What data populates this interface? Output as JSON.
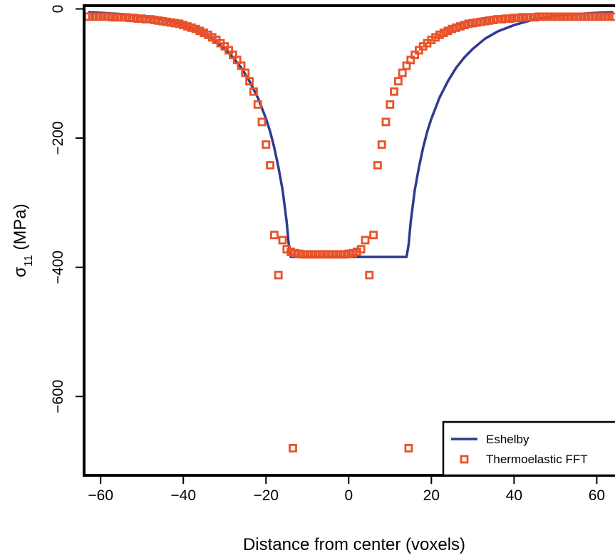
{
  "chart_data": {
    "type": "scatter",
    "xlabel": "Distance from center (voxels)",
    "ylabel_main": "σ",
    "ylabel_sub": "11",
    "ylabel_tail": " (MPa)",
    "xlim": [
      -64,
      67
    ],
    "ylim": [
      -722,
      5
    ],
    "x_ticks": [
      -60,
      -40,
      -20,
      0,
      20,
      40,
      60
    ],
    "x_tick_labels": [
      "−60",
      "−40",
      "−20",
      "0",
      "20",
      "40",
      "60"
    ],
    "y_ticks": [
      0,
      -200,
      -400,
      -600
    ],
    "y_tick_labels": [
      "0",
      "−200",
      "−400",
      "−600"
    ],
    "grid": false,
    "legend_position": "bottom-right",
    "colors": {
      "eshelby": "#2e3b8f",
      "fft": "#e8522a"
    },
    "series": [
      {
        "name": "Eshelby",
        "kind": "line",
        "x": [
          -63,
          -60,
          -55,
          -50,
          -45,
          -40,
          -36,
          -33,
          -30,
          -28,
          -26,
          -24,
          -22,
          -20,
          -19,
          -18,
          -17,
          -16,
          -15.5,
          -15,
          -14.5,
          -14,
          -13,
          -10,
          -5,
          0,
          5,
          10,
          13,
          14,
          14.5,
          15,
          15.5,
          16,
          17,
          18,
          19,
          20,
          22,
          24,
          26,
          28,
          30,
          33,
          36,
          40,
          45,
          50,
          55,
          60,
          64
        ],
        "y": [
          -5,
          -6,
          -8,
          -11,
          -16,
          -25,
          -35,
          -46,
          -62,
          -75,
          -91,
          -112,
          -137,
          -170,
          -190,
          -215,
          -245,
          -280,
          -305,
          -330,
          -365,
          -384,
          -384,
          -384,
          -384,
          -384,
          -384,
          -384,
          -384,
          -384,
          -365,
          -330,
          -305,
          -280,
          -245,
          -215,
          -190,
          -170,
          -137,
          -112,
          -91,
          -75,
          -62,
          -46,
          -35,
          -25,
          -16,
          -11,
          -8,
          -6,
          -5
        ]
      },
      {
        "name": "Thermoelastic FFT",
        "kind": "points",
        "x": [
          -63,
          -62,
          -61,
          -60,
          -59,
          -58,
          -57,
          -56,
          -55,
          -54,
          -53,
          -52,
          -51,
          -50,
          -49,
          -48,
          -47,
          -46,
          -45,
          -44,
          -43,
          -42,
          -41,
          -40,
          -39,
          -38,
          -37,
          -36,
          -35,
          -34,
          -33,
          -32,
          -31,
          -30,
          -29,
          -28,
          -27,
          -26,
          -25,
          -24,
          -23,
          -22,
          -21,
          -20,
          -19,
          -18,
          -17,
          -16,
          -15,
          -14,
          -13,
          -12,
          -11,
          -10,
          -9,
          -8,
          -7,
          -6,
          -5,
          -4,
          -3,
          -2,
          -1,
          0,
          1,
          2,
          3,
          4,
          5,
          6,
          7,
          8,
          9,
          10,
          11,
          12,
          13,
          14,
          15,
          16,
          17,
          18,
          19,
          20,
          21,
          22,
          23,
          24,
          25,
          26,
          27,
          28,
          29,
          30,
          31,
          32,
          33,
          34,
          35,
          36,
          37,
          38,
          39,
          40,
          41,
          42,
          43,
          44,
          45,
          46,
          47,
          48,
          49,
          50,
          51,
          52,
          53,
          54,
          55,
          56,
          57,
          58,
          59,
          60,
          61,
          62,
          63,
          64,
          -13.5,
          14.5
        ],
        "y": [
          -12,
          -12,
          -12,
          -12,
          -12,
          -12,
          -13,
          -13,
          -13,
          -13,
          -14,
          -14,
          -15,
          -15,
          -16,
          -16,
          -17,
          -18,
          -19,
          -20,
          -21,
          -22,
          -23,
          -25,
          -27,
          -29,
          -31,
          -34,
          -37,
          -40,
          -44,
          -48,
          -53,
          -58,
          -64,
          -71,
          -79,
          -88,
          -99,
          -112,
          -128,
          -148,
          -175,
          -210,
          -242,
          -350,
          -412,
          -358,
          -372,
          -376,
          -378,
          -379,
          -380,
          -380,
          -380,
          -380,
          -380,
          -380,
          -380,
          -380,
          -380,
          -380,
          -380,
          -379,
          -378,
          -376,
          -372,
          -358,
          -412,
          -350,
          -242,
          -210,
          -175,
          -148,
          -128,
          -112,
          -99,
          -88,
          -79,
          -71,
          -64,
          -58,
          -53,
          -48,
          -44,
          -40,
          -37,
          -34,
          -31,
          -29,
          -27,
          -25,
          -23,
          -22,
          -21,
          -20,
          -19,
          -18,
          -17,
          -16,
          -16,
          -15,
          -15,
          -14,
          -14,
          -13,
          -13,
          -13,
          -13,
          -12,
          -12,
          -12,
          -12,
          -12,
          -12,
          -12,
          -12,
          -12,
          -12,
          -12,
          -12,
          -12,
          -12,
          -12,
          -12,
          -12,
          -12,
          -12,
          -680,
          -680
        ]
      }
    ]
  }
}
